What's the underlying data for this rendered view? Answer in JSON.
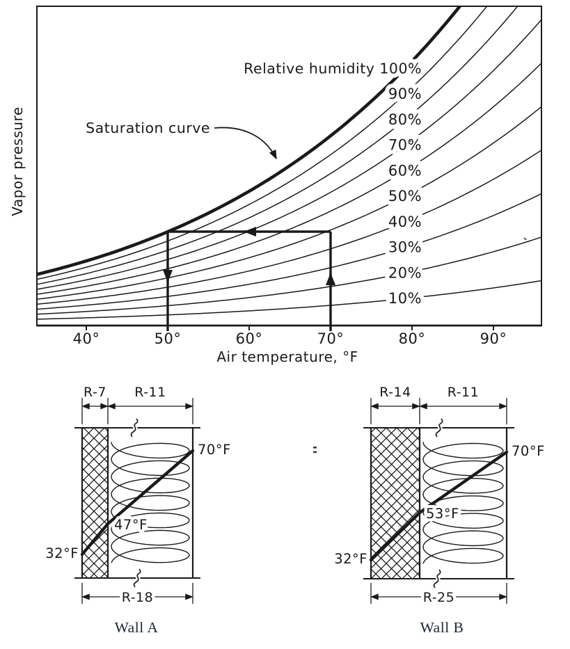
{
  "page": {
    "background": "#ffffff",
    "ink_color": "#1a1a1a",
    "caption_color": "#1d2633"
  },
  "chart_data": {
    "type": "line",
    "title": "",
    "xlabel": "Air temperature, °F",
    "ylabel": "Vapor pressure",
    "grid": false,
    "x_ticks": [
      {
        "value": 40,
        "label": "40°"
      },
      {
        "value": 50,
        "label": "50°"
      },
      {
        "value": 60,
        "label": "60°"
      },
      {
        "value": 70,
        "label": "70°"
      },
      {
        "value": 80,
        "label": "80°"
      },
      {
        "value": 90,
        "label": "90°"
      }
    ],
    "x_range_f": [
      33.9,
      95.9
    ],
    "rh_curves_percent": [
      10,
      20,
      30,
      40,
      50,
      60,
      70,
      80,
      90,
      100
    ],
    "curve_labels": [
      {
        "rh": 100,
        "label": "Relative humidity 100%"
      },
      {
        "rh": 90,
        "label": "90%"
      },
      {
        "rh": 80,
        "label": "80%"
      },
      {
        "rh": 70,
        "label": "70%"
      },
      {
        "rh": 60,
        "label": "60%"
      },
      {
        "rh": 50,
        "label": "50%"
      },
      {
        "rh": 40,
        "label": "40%"
      },
      {
        "rh": 30,
        "label": "30%"
      },
      {
        "rh": 20,
        "label": "20%"
      },
      {
        "rh": 10,
        "label": "10%"
      }
    ],
    "saturation_label": "Saturation curve",
    "process_path": {
      "description": "Air at 70°F cooled at constant vapor pressure reaches the saturation curve at 50°F (dew point), then condenses",
      "start_temp_f": 70,
      "dew_point_f": 50
    }
  },
  "walls": [
    {
      "caption": "Wall A",
      "layer1_label": "R-7",
      "layer2_label": "R-11",
      "total_label": "R-18",
      "outside_temp": "32°F",
      "interface_temp": "47°F",
      "inside_temp": "70°F"
    },
    {
      "caption": "Wall B",
      "layer1_label": "R-14",
      "layer2_label": "R-11",
      "total_label": "R-25",
      "outside_temp": "32°F",
      "interface_temp": "53°F",
      "inside_temp": "70°F"
    }
  ]
}
